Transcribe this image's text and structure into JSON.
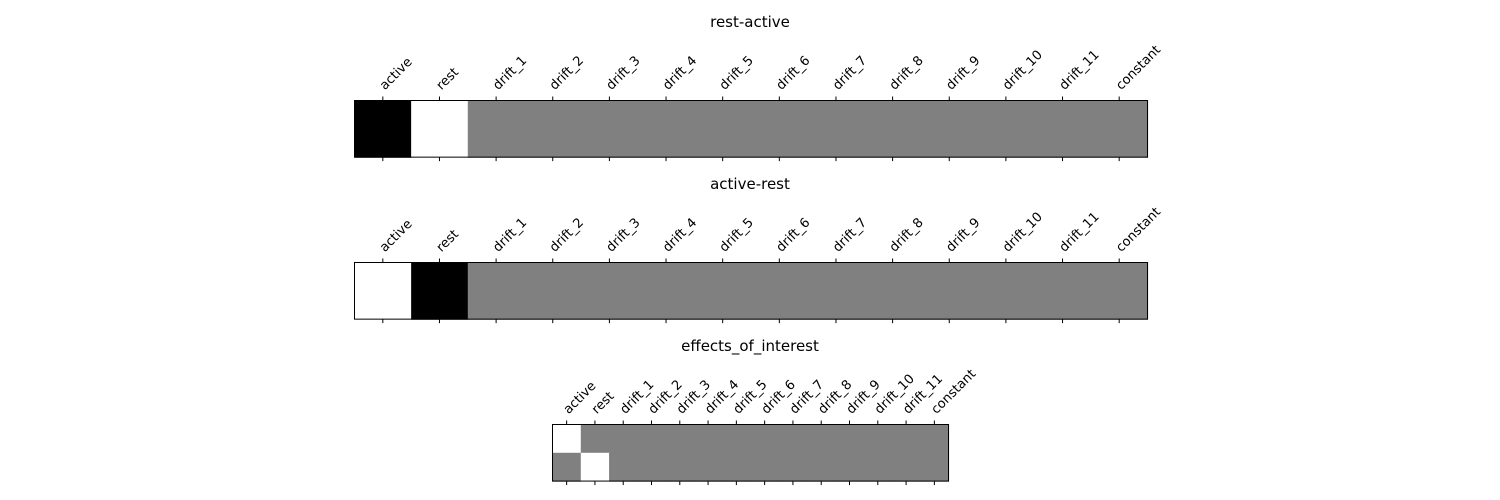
{
  "chart_data": [
    {
      "type": "heatmap",
      "title": "rest-active",
      "columns": [
        "active",
        "rest",
        "drift_1",
        "drift_2",
        "drift_3",
        "drift_4",
        "drift_5",
        "drift_6",
        "drift_7",
        "drift_8",
        "drift_9",
        "drift_10",
        "drift_11",
        "constant"
      ],
      "rows": [
        [
          -1,
          1,
          0,
          0,
          0,
          0,
          0,
          0,
          0,
          0,
          0,
          0,
          0,
          0
        ]
      ],
      "colormap": "gray",
      "vlim": [
        -1,
        1
      ],
      "xtick_position": "top"
    },
    {
      "type": "heatmap",
      "title": "active-rest",
      "columns": [
        "active",
        "rest",
        "drift_1",
        "drift_2",
        "drift_3",
        "drift_4",
        "drift_5",
        "drift_6",
        "drift_7",
        "drift_8",
        "drift_9",
        "drift_10",
        "drift_11",
        "constant"
      ],
      "rows": [
        [
          1,
          -1,
          0,
          0,
          0,
          0,
          0,
          0,
          0,
          0,
          0,
          0,
          0,
          0
        ]
      ],
      "colormap": "gray",
      "vlim": [
        -1,
        1
      ],
      "xtick_position": "top"
    },
    {
      "type": "heatmap",
      "title": "effects_of_interest",
      "columns": [
        "active",
        "rest",
        "drift_1",
        "drift_2",
        "drift_3",
        "drift_4",
        "drift_5",
        "drift_6",
        "drift_7",
        "drift_8",
        "drift_9",
        "drift_10",
        "drift_11",
        "constant"
      ],
      "rows": [
        [
          1,
          0,
          0,
          0,
          0,
          0,
          0,
          0,
          0,
          0,
          0,
          0,
          0,
          0
        ],
        [
          0,
          1,
          0,
          0,
          0,
          0,
          0,
          0,
          0,
          0,
          0,
          0,
          0,
          0
        ]
      ],
      "colormap": "gray",
      "vlim": [
        -1,
        1
      ],
      "xtick_position": "top"
    }
  ]
}
